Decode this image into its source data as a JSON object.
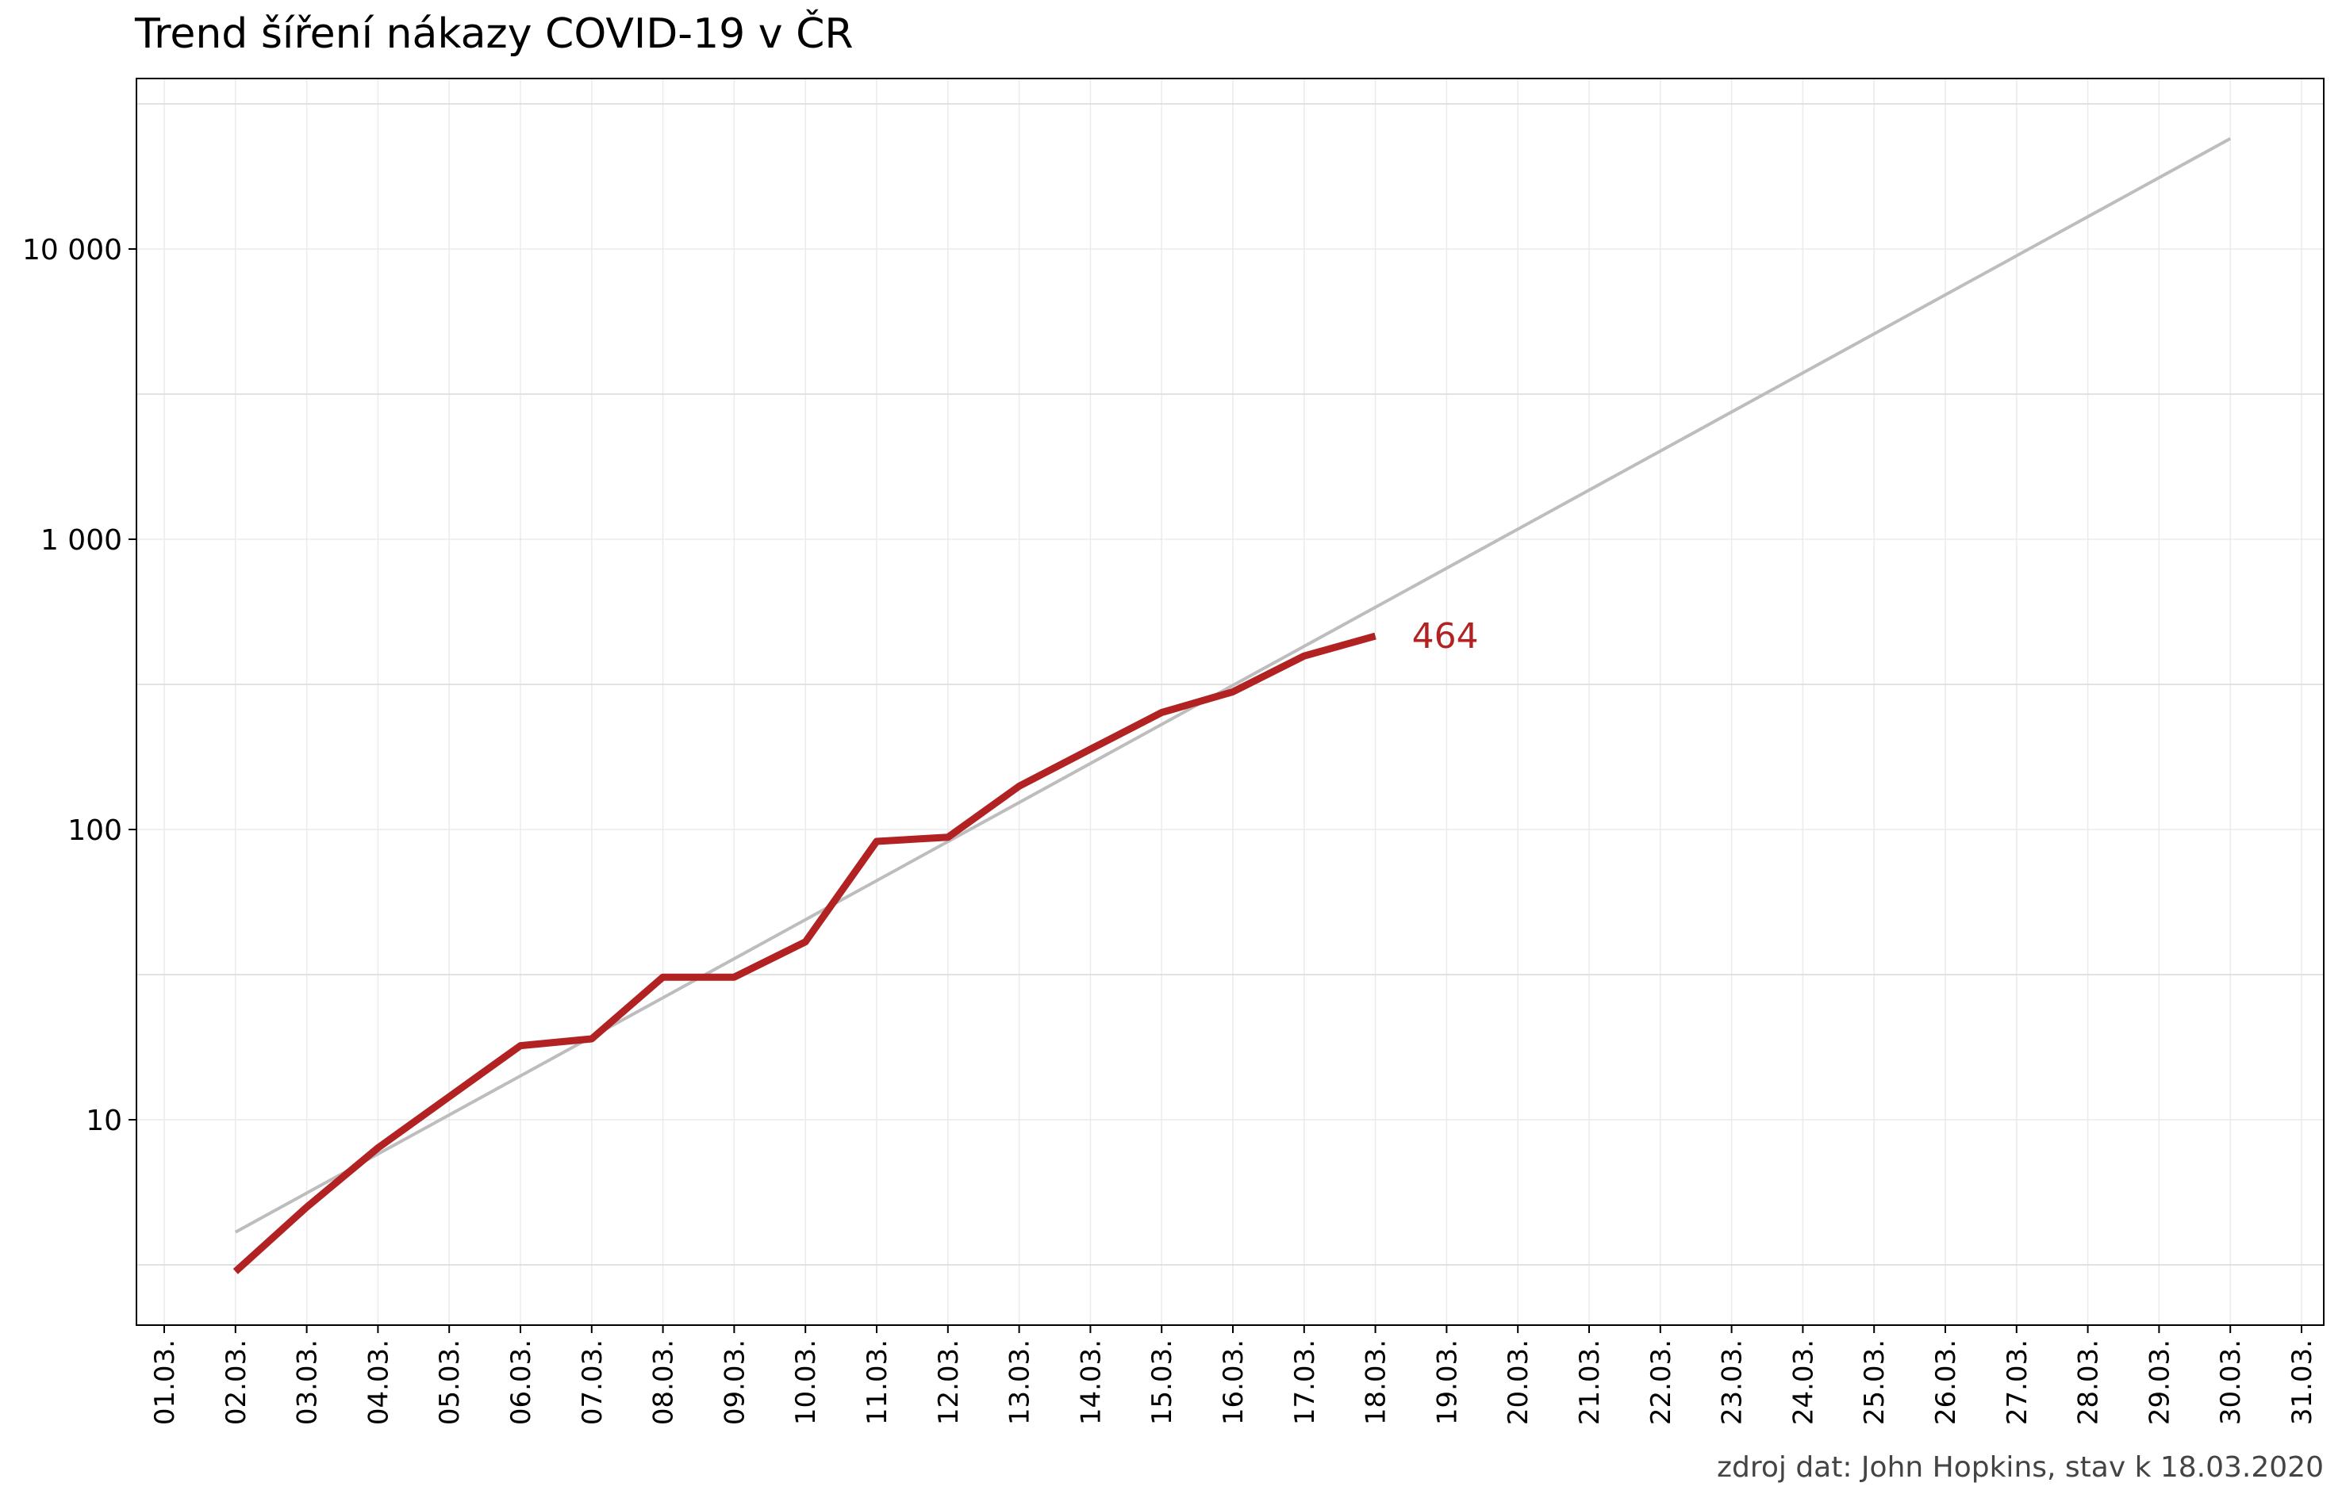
{
  "chart_data": {
    "type": "line",
    "title": "Trend šíření nákazy COVID-19 v ČR",
    "caption": "zdroj dat: John Hopkins, stav k 18.03.2020",
    "xlabel": "",
    "ylabel": "",
    "y_scale": "log10",
    "ylim": [
      2,
      35000
    ],
    "yticks": [
      10,
      100,
      1000,
      10000
    ],
    "ytick_labels": [
      "10",
      "100",
      "1 000",
      "10 000"
    ],
    "x_categories": [
      "01.03.",
      "02.03.",
      "03.03.",
      "04.03.",
      "05.03.",
      "06.03.",
      "07.03.",
      "08.03.",
      "09.03.",
      "10.03.",
      "11.03.",
      "12.03.",
      "13.03.",
      "14.03.",
      "15.03.",
      "16.03.",
      "17.03.",
      "18.03.",
      "19.03.",
      "20.03.",
      "21.03.",
      "22.03.",
      "23.03.",
      "24.03.",
      "25.03.",
      "26.03.",
      "27.03.",
      "28.03.",
      "29.03.",
      "30.03.",
      "31.03."
    ],
    "grid": true,
    "series": [
      {
        "kind": "observed",
        "color": "#b22222",
        "x": [
          "02.03.",
          "03.03.",
          "04.03.",
          "05.03.",
          "06.03.",
          "07.03.",
          "08.03.",
          "09.03.",
          "10.03.",
          "11.03.",
          "12.03.",
          "13.03.",
          "14.03.",
          "15.03.",
          "16.03.",
          "17.03.",
          "18.03."
        ],
        "values": [
          3,
          5,
          8,
          12,
          18,
          19,
          31,
          31,
          41,
          91,
          94,
          141,
          189,
          253,
          298,
          396,
          464
        ],
        "end_label": "464"
      },
      {
        "kind": "trend",
        "color": "#bdbdbd",
        "x": [
          "02.03.",
          "30.03."
        ],
        "values": [
          4.1,
          24000
        ]
      }
    ]
  }
}
